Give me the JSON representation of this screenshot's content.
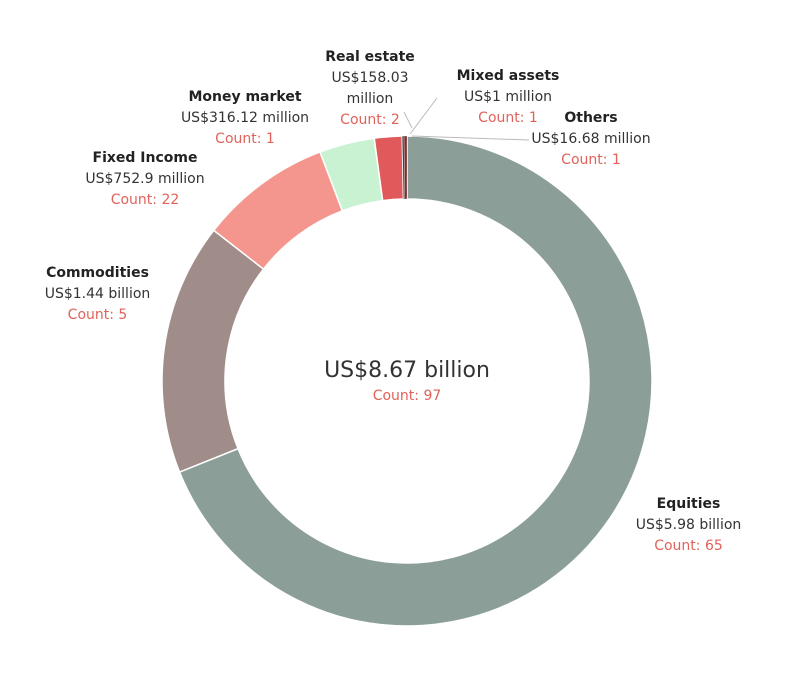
{
  "chart_data": {
    "type": "pie",
    "style": "donut",
    "center": {
      "total": "US$8.67 billion",
      "count": "Count: 97"
    },
    "segments": [
      {
        "name": "Equities",
        "value_label": "US$5.98 billion",
        "value": 5980,
        "count_label": "Count: 65",
        "color": "#8b9f98"
      },
      {
        "name": "Commodities",
        "value_label": "US$1.44 billion",
        "value": 1440,
        "count_label": "Count: 5",
        "color": "#a08c89"
      },
      {
        "name": "Fixed Income",
        "value_label": "US$752.9 million",
        "value": 752.9,
        "count_label": "Count: 22",
        "color": "#f4968d"
      },
      {
        "name": "Money market",
        "value_label": "US$316.12 million",
        "value": 316.12,
        "count_label": "Count: 1",
        "color": "#c9f2d2"
      },
      {
        "name": "Real estate",
        "value_label": "US$158.03 million",
        "value": 158.03,
        "count_label": "Count: 2",
        "color": "#e05a5c"
      },
      {
        "name": "Mixed assets",
        "value_label": "US$1 million",
        "value": 1,
        "count_label": "Count: 1",
        "color": "#444444"
      },
      {
        "name": "Others",
        "value_label": "US$16.68 million",
        "value": 16.68,
        "count_label": "Count: 1",
        "color": "#7a2e2e"
      }
    ]
  }
}
